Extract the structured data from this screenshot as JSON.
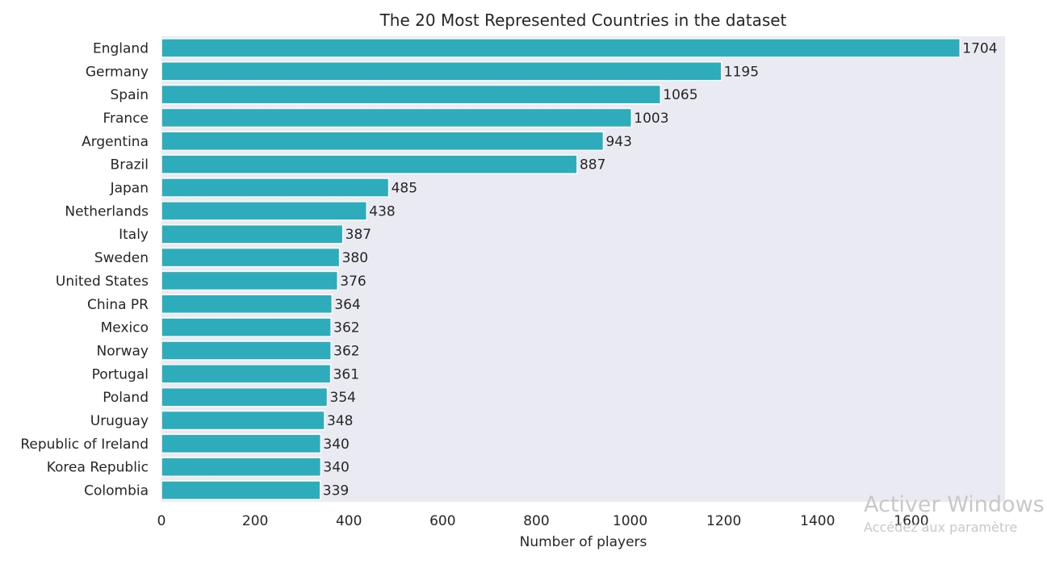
{
  "chart_data": {
    "type": "bar",
    "orientation": "horizontal",
    "title": "The 20 Most Represented Countries in the dataset",
    "xlabel": "Number of players",
    "ylabel": "",
    "xlim": [
      0,
      1800
    ],
    "xticks": [
      0,
      200,
      400,
      600,
      800,
      1000,
      1200,
      1400,
      1600
    ],
    "grid": false,
    "bar_color": "#2eacbc",
    "background_color": "#eaeaf2",
    "categories": [
      "England",
      "Germany",
      "Spain",
      "France",
      "Argentina",
      "Brazil",
      "Japan",
      "Netherlands",
      "Italy",
      "Sweden",
      "United States",
      "China PR",
      "Mexico",
      "Norway",
      "Portugal",
      "Poland",
      "Uruguay",
      "Republic of Ireland",
      "Korea Republic",
      "Colombia"
    ],
    "values": [
      1704,
      1195,
      1065,
      1003,
      943,
      887,
      485,
      438,
      387,
      380,
      376,
      364,
      362,
      362,
      361,
      354,
      348,
      340,
      340,
      339
    ]
  },
  "watermark": {
    "title": "Activer Windows",
    "subtitle": "Accédez aux paramètre"
  }
}
